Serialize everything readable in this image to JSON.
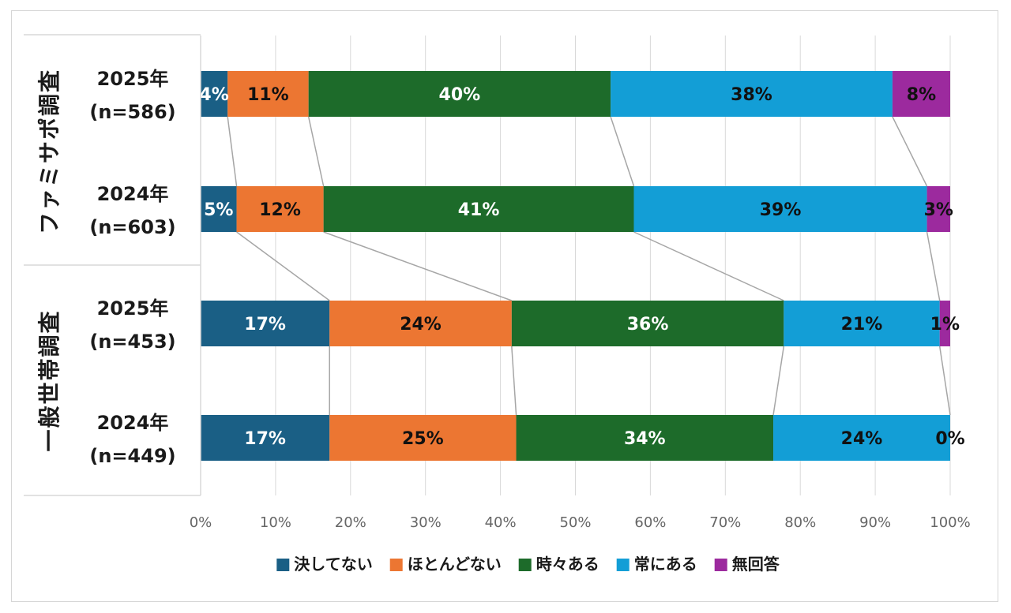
{
  "chart_data": {
    "type": "bar",
    "orientation": "horizontal",
    "stacked": true,
    "percent": true,
    "xlim": [
      0,
      100
    ],
    "xticks": [
      "0%",
      "10%",
      "20%",
      "30%",
      "40%",
      "50%",
      "60%",
      "70%",
      "80%",
      "90%",
      "100%"
    ],
    "groups": [
      {
        "label": "ファミサポ調査",
        "rows": [
          0,
          1
        ]
      },
      {
        "label": "一般世帯調査",
        "rows": [
          2,
          3
        ]
      }
    ],
    "categories": [
      {
        "year": "2025年",
        "n": "(n=586)"
      },
      {
        "year": "2024年",
        "n": "(n=603)"
      },
      {
        "year": "2025年",
        "n": "(n=453)"
      },
      {
        "year": "2024年",
        "n": "(n=449)"
      }
    ],
    "series": [
      {
        "name": "決してない",
        "color": "#1a5f85",
        "label_color": "#ffffff",
        "values": [
          3.6,
          4.8,
          17.2,
          17.2
        ],
        "labels": [
          "4%",
          "5%",
          "17%",
          "17%"
        ]
      },
      {
        "name": "ほとんどない",
        "color": "#ec7632",
        "label_color": "#111111",
        "values": [
          10.8,
          11.6,
          24.3,
          24.9
        ],
        "labels": [
          "11%",
          "12%",
          "24%",
          "25%"
        ]
      },
      {
        "name": "時々ある",
        "color": "#1d6b2a",
        "label_color": "#ffffff",
        "values": [
          40.3,
          41.4,
          36.3,
          34.3
        ],
        "labels": [
          "40%",
          "41%",
          "36%",
          "34%"
        ]
      },
      {
        "name": "常にある",
        "color": "#139ed6",
        "label_color": "#111111",
        "values": [
          37.6,
          39.1,
          20.8,
          23.6
        ],
        "labels": [
          "38%",
          "39%",
          "21%",
          "24%"
        ]
      },
      {
        "name": "無回答",
        "color": "#9c2a9e",
        "label_color": "#111111",
        "values": [
          7.7,
          3.1,
          1.4,
          0.0
        ],
        "labels": [
          "8%",
          "3%",
          "1%",
          "0%"
        ]
      }
    ],
    "series_lines": true,
    "grid": true,
    "legend": "bottom"
  }
}
